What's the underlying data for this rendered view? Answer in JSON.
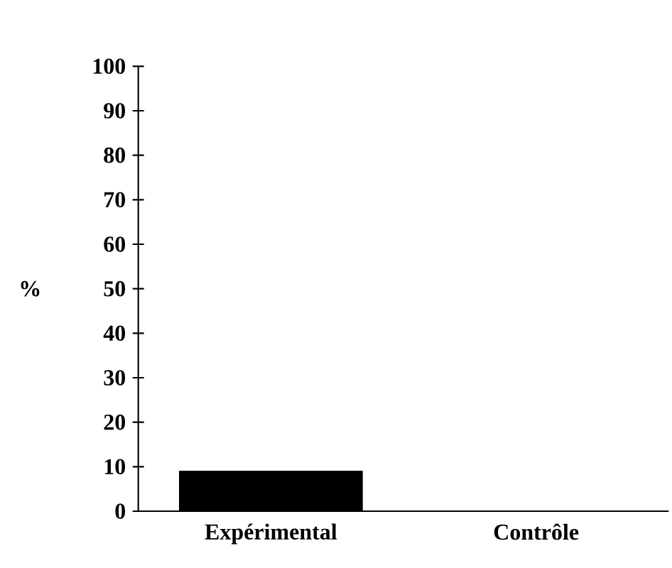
{
  "chart_data": {
    "type": "bar",
    "ylabel": "%",
    "categories": [
      "Expérimental",
      "Contrôle"
    ],
    "values": [
      9,
      0
    ],
    "color": "#000000",
    "ylim": [
      0,
      100
    ],
    "yticks": [
      0,
      10,
      20,
      30,
      40,
      50,
      60,
      70,
      80,
      90,
      100
    ],
    "grid": false
  }
}
